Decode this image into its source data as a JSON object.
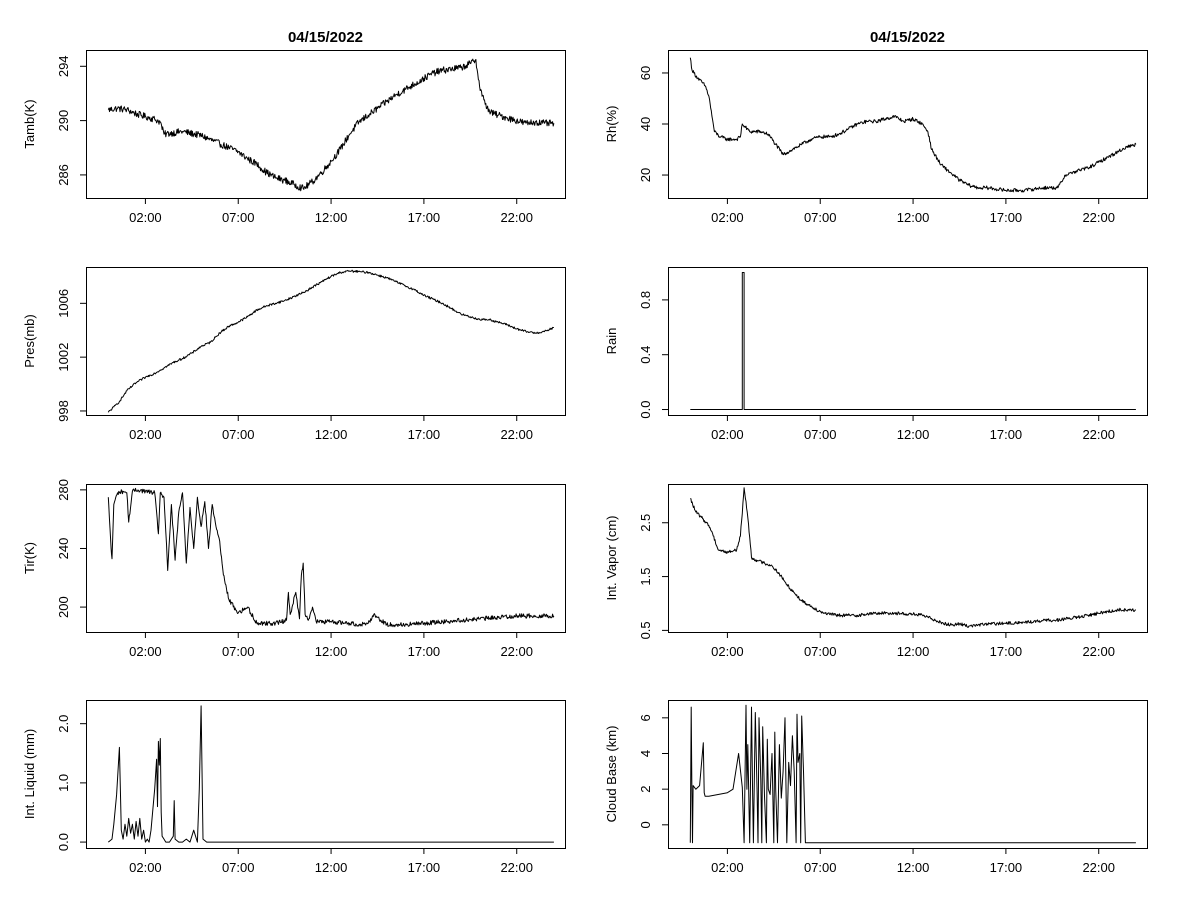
{
  "figure": {
    "column_titles": [
      "04/15/2022",
      "04/15/2022"
    ],
    "x_tick_labels": [
      "02:00",
      "07:00",
      "12:00",
      "17:00",
      "22:00"
    ]
  },
  "chart_data": [
    {
      "id": "tamb",
      "type": "line",
      "ylabel": "Tamb(K)",
      "title": "04/15/2022",
      "xlim": [
        -1.2,
        24.6
      ],
      "ylim": [
        284.3,
        295.2
      ],
      "yticks": [
        286,
        290,
        294
      ],
      "ytick_labels": [
        "286",
        "290",
        "294"
      ],
      "xticks": [
        2,
        7,
        12,
        17,
        22
      ],
      "xtick_labels": [
        "02:00",
        "07:00",
        "12:00",
        "17:00",
        "22:00"
      ],
      "x": [
        0.0,
        0.5,
        1.0,
        1.5,
        2.0,
        2.5,
        2.8,
        3.0,
        4.0,
        5.0,
        6.0,
        6.5,
        7.0,
        7.5,
        8.0,
        8.5,
        9.0,
        9.5,
        10.0,
        10.5,
        11.0,
        11.5,
        12.0,
        12.5,
        13.0,
        13.5,
        14.0,
        14.5,
        15.0,
        15.5,
        16.0,
        16.5,
        17.0,
        17.5,
        18.0,
        18.5,
        19.0,
        19.5,
        19.8,
        20.0,
        20.3,
        20.6,
        21.0,
        21.5,
        22.0,
        22.5,
        23.0,
        23.5,
        24.0
      ],
      "y": [
        290.8,
        290.9,
        290.8,
        290.5,
        290.3,
        290.1,
        289.9,
        289.0,
        289.2,
        288.9,
        288.3,
        288.0,
        287.7,
        287.2,
        286.8,
        286.2,
        285.8,
        285.6,
        285.3,
        285.0,
        285.5,
        286.2,
        287.0,
        287.9,
        289.0,
        289.9,
        290.4,
        290.9,
        291.4,
        291.9,
        292.3,
        292.7,
        293.1,
        293.5,
        293.7,
        293.8,
        293.9,
        294.2,
        294.5,
        292.5,
        291.2,
        290.6,
        290.4,
        290.2,
        290.0,
        289.8,
        289.9,
        289.8,
        289.8
      ],
      "noise": 0.25
    },
    {
      "id": "rh",
      "type": "line",
      "ylabel": "Rh(%)",
      "title": "04/15/2022",
      "xlim": [
        -1.2,
        24.6
      ],
      "ylim": [
        11,
        69
      ],
      "yticks": [
        20,
        40,
        60
      ],
      "ytick_labels": [
        "20",
        "40",
        "60"
      ],
      "xticks": [
        2,
        7,
        12,
        17,
        22
      ],
      "xtick_labels": [
        "02:00",
        "07:00",
        "12:00",
        "17:00",
        "22:00"
      ],
      "x": [
        0.0,
        0.1,
        0.4,
        0.8,
        1.0,
        1.3,
        1.6,
        2.0,
        2.5,
        2.7,
        2.8,
        3.2,
        3.8,
        4.2,
        4.6,
        5.0,
        5.5,
        6.0,
        6.5,
        7.0,
        7.5,
        8.0,
        8.5,
        9.0,
        9.5,
        10.0,
        10.5,
        11.0,
        11.5,
        12.0,
        12.5,
        12.8,
        13.0,
        13.5,
        14.0,
        14.5,
        15.0,
        15.5,
        16.0,
        17.0,
        18.0,
        19.0,
        19.8,
        20.2,
        20.6,
        21.0,
        21.5,
        22.0,
        22.5,
        23.0,
        23.5,
        24.0
      ],
      "y": [
        66,
        61,
        58,
        55,
        51,
        37,
        35,
        34,
        34,
        35,
        40,
        37,
        37,
        36,
        32,
        28,
        30,
        32,
        34,
        35,
        35,
        36,
        38,
        40,
        41,
        41,
        42,
        43,
        41,
        42,
        40,
        37,
        30,
        24,
        21,
        18,
        16,
        15,
        15,
        14,
        14,
        15,
        15,
        20,
        21,
        22,
        23,
        25,
        27,
        29,
        31,
        32
      ],
      "noise": 0.7
    },
    {
      "id": "pres",
      "type": "line",
      "ylabel": "Pres(mb)",
      "title": "",
      "xlim": [
        -1.2,
        24.6
      ],
      "ylim": [
        997.7,
        1008.7
      ],
      "yticks": [
        998,
        1002,
        1006
      ],
      "ytick_labels": [
        "998",
        "1002",
        "1006"
      ],
      "xticks": [
        2,
        7,
        12,
        17,
        22
      ],
      "xtick_labels": [
        "02:00",
        "07:00",
        "12:00",
        "17:00",
        "22:00"
      ],
      "x": [
        0.0,
        0.3,
        0.6,
        1.0,
        1.5,
        2.0,
        2.5,
        3.0,
        3.5,
        4.0,
        4.5,
        5.0,
        5.5,
        6.0,
        6.5,
        7.0,
        7.5,
        8.0,
        8.5,
        9.0,
        9.5,
        10.0,
        10.5,
        11.0,
        11.5,
        12.0,
        12.5,
        13.0,
        13.5,
        14.0,
        14.5,
        15.0,
        15.5,
        16.0,
        16.5,
        17.0,
        17.5,
        18.0,
        18.5,
        19.0,
        19.5,
        20.0,
        20.5,
        21.0,
        21.5,
        22.0,
        22.5,
        23.0,
        23.5,
        24.0
      ],
      "y": [
        997.9,
        998.3,
        998.7,
        999.5,
        1000.1,
        1000.5,
        1000.8,
        1001.2,
        1001.6,
        1001.9,
        1002.3,
        1002.8,
        1003.1,
        1003.8,
        1004.3,
        1004.6,
        1005.0,
        1005.5,
        1005.8,
        1006.0,
        1006.2,
        1006.5,
        1006.8,
        1007.2,
        1007.6,
        1008.0,
        1008.3,
        1008.4,
        1008.35,
        1008.3,
        1008.1,
        1007.9,
        1007.6,
        1007.3,
        1007.0,
        1006.6,
        1006.3,
        1006.0,
        1005.6,
        1005.2,
        1005.0,
        1004.8,
        1004.8,
        1004.6,
        1004.4,
        1004.1,
        1003.9,
        1003.8,
        1003.9,
        1004.2
      ],
      "noise": 0.08
    },
    {
      "id": "rain",
      "type": "line",
      "ylabel": "Rain",
      "title": "",
      "xlim": [
        -1.2,
        24.6
      ],
      "ylim": [
        -0.04,
        1.04
      ],
      "yticks": [
        0.0,
        0.4,
        0.8
      ],
      "ytick_labels": [
        "0.0",
        "0.4",
        "0.8"
      ],
      "xticks": [
        2,
        7,
        12,
        17,
        22
      ],
      "xtick_labels": [
        "02:00",
        "07:00",
        "12:00",
        "17:00",
        "22:00"
      ],
      "x": [
        0.0,
        2.8,
        2.8,
        2.9,
        2.9,
        24.0
      ],
      "y": [
        0,
        0,
        1.0,
        1.0,
        0,
        0
      ],
      "noise": 0
    },
    {
      "id": "tir",
      "type": "line",
      "ylabel": "Tir(K)",
      "title": "",
      "xlim": [
        -1.2,
        24.6
      ],
      "ylim": [
        183,
        284
      ],
      "yticks": [
        200,
        240,
        280
      ],
      "ytick_labels": [
        "200",
        "240",
        "280"
      ],
      "xticks": [
        2,
        7,
        12,
        17,
        22
      ],
      "xtick_labels": [
        "02:00",
        "07:00",
        "12:00",
        "17:00",
        "22:00"
      ],
      "x": [
        0.0,
        0.15,
        0.2,
        0.3,
        0.5,
        0.8,
        1.0,
        1.1,
        1.3,
        1.6,
        2.0,
        2.5,
        2.7,
        2.8,
        3.0,
        3.2,
        3.4,
        3.6,
        3.8,
        4.0,
        4.2,
        4.4,
        4.6,
        4.8,
        5.0,
        5.2,
        5.4,
        5.6,
        5.8,
        6.0,
        6.2,
        6.5,
        7.0,
        7.5,
        8.0,
        9.0,
        9.6,
        9.7,
        9.8,
        10.1,
        10.3,
        10.4,
        10.5,
        10.6,
        10.8,
        11.0,
        11.2,
        12.0,
        13.0,
        13.5,
        14.0,
        14.3,
        15.0,
        16.0,
        17.0,
        18.0,
        19.0,
        20.0,
        21.0,
        22.0,
        23.0,
        24.0
      ],
      "y": [
        275,
        240,
        233,
        270,
        278,
        279,
        278,
        258,
        279,
        280,
        279,
        278,
        250,
        278,
        275,
        225,
        270,
        232,
        265,
        278,
        230,
        268,
        240,
        275,
        255,
        272,
        240,
        270,
        255,
        245,
        222,
        205,
        196,
        200,
        189,
        189,
        191,
        210,
        195,
        210,
        192,
        222,
        230,
        195,
        192,
        200,
        190,
        190,
        189,
        188,
        189,
        195,
        188,
        188,
        189,
        190,
        191,
        192,
        193,
        194,
        194,
        194
      ],
      "noise": 1.5
    },
    {
      "id": "vapor",
      "type": "line",
      "ylabel": "Int. Vapor (cm)",
      "title": "",
      "xlim": [
        -1.2,
        24.6
      ],
      "ylim": [
        0.47,
        3.22
      ],
      "yticks": [
        0.5,
        1.5,
        2.5
      ],
      "ytick_labels": [
        "0.5",
        "1.5",
        "2.5"
      ],
      "xticks": [
        2,
        7,
        12,
        17,
        22
      ],
      "xtick_labels": [
        "02:00",
        "07:00",
        "12:00",
        "17:00",
        "22:00"
      ],
      "x": [
        0.0,
        0.3,
        0.6,
        1.0,
        1.2,
        1.5,
        2.0,
        2.5,
        2.7,
        2.9,
        3.1,
        3.3,
        3.6,
        4.0,
        4.4,
        4.8,
        5.2,
        5.6,
        6.0,
        6.5,
        7.0,
        7.5,
        8.0,
        9.0,
        10.0,
        11.0,
        12.0,
        12.5,
        13.0,
        13.5,
        14.0,
        14.5,
        15.0,
        15.5,
        16.0,
        17.0,
        18.0,
        19.0,
        20.0,
        21.0,
        22.0,
        23.0,
        24.0
      ],
      "y": [
        2.95,
        2.7,
        2.6,
        2.45,
        2.3,
        2.0,
        1.95,
        2.0,
        2.25,
        3.15,
        2.6,
        1.85,
        1.8,
        1.75,
        1.7,
        1.55,
        1.35,
        1.2,
        1.05,
        0.95,
        0.85,
        0.8,
        0.78,
        0.78,
        0.82,
        0.82,
        0.8,
        0.78,
        0.72,
        0.65,
        0.6,
        0.62,
        0.58,
        0.6,
        0.62,
        0.63,
        0.65,
        0.68,
        0.7,
        0.75,
        0.82,
        0.88,
        0.88
      ],
      "noise": 0.03
    },
    {
      "id": "liquid",
      "type": "line",
      "ylabel": "Int. Liquid (mm)",
      "title": "",
      "xlim": [
        -1.2,
        24.6
      ],
      "ylim": [
        -0.1,
        2.4
      ],
      "yticks": [
        0.0,
        1.0,
        2.0
      ],
      "ytick_labels": [
        "0.0",
        "1.0",
        "2.0"
      ],
      "xticks": [
        2,
        7,
        12,
        17,
        22
      ],
      "xtick_labels": [
        "02:00",
        "07:00",
        "12:00",
        "17:00",
        "22:00"
      ],
      "x": [
        0.0,
        0.2,
        0.3,
        0.45,
        0.6,
        0.7,
        0.8,
        0.9,
        1.0,
        1.1,
        1.2,
        1.3,
        1.4,
        1.5,
        1.6,
        1.7,
        1.8,
        1.9,
        2.0,
        2.1,
        2.2,
        2.3,
        2.5,
        2.6,
        2.65,
        2.7,
        2.75,
        2.8,
        2.85,
        2.9,
        3.0,
        3.1,
        3.3,
        3.5,
        3.55,
        3.6,
        3.8,
        4.0,
        4.2,
        4.4,
        4.6,
        4.8,
        4.9,
        5.0,
        5.1,
        5.3,
        6.0,
        12.0,
        24.0
      ],
      "y": [
        0.0,
        0.05,
        0.3,
        0.8,
        1.6,
        0.2,
        0.05,
        0.3,
        0.1,
        0.4,
        0.15,
        0.3,
        0.05,
        0.35,
        0.1,
        0.4,
        0.05,
        0.2,
        0.0,
        0.05,
        0.0,
        0.2,
        0.9,
        1.4,
        0.6,
        1.7,
        1.3,
        1.75,
        0.5,
        0.1,
        0.05,
        0.0,
        0.0,
        0.1,
        0.7,
        0.05,
        0.0,
        0.0,
        0.05,
        0.0,
        0.2,
        0.0,
        0.9,
        2.3,
        0.05,
        0.0,
        0.0,
        0.0,
        0.0
      ],
      "noise": 0
    },
    {
      "id": "cloudbase",
      "type": "line",
      "ylabel": "Cloud Base (km)",
      "title": "",
      "xlim": [
        -1.2,
        24.6
      ],
      "ylim": [
        -1.3,
        7.0
      ],
      "yticks": [
        0,
        2,
        4,
        6
      ],
      "ytick_labels": [
        "0",
        "2",
        "4",
        "6"
      ],
      "xticks": [
        2,
        7,
        12,
        17,
        22
      ],
      "xtick_labels": [
        "02:00",
        "07:00",
        "12:00",
        "17:00",
        "22:00"
      ],
      "x": [
        0.0,
        0.05,
        0.08,
        0.12,
        0.15,
        0.3,
        0.5,
        0.7,
        0.75,
        0.8,
        1.0,
        1.5,
        2.0,
        2.3,
        2.6,
        2.8,
        2.9,
        3.0,
        3.05,
        3.1,
        3.2,
        3.3,
        3.35,
        3.4,
        3.5,
        3.6,
        3.65,
        3.7,
        3.8,
        3.85,
        3.9,
        4.0,
        4.1,
        4.15,
        4.2,
        4.3,
        4.4,
        4.5,
        4.55,
        4.6,
        4.7,
        4.8,
        4.9,
        5.0,
        5.1,
        5.2,
        5.3,
        5.4,
        5.5,
        5.6,
        5.7,
        5.75,
        5.8,
        5.9,
        5.95,
        6.0,
        6.1,
        6.2,
        6.3,
        24.0
      ],
      "y": [
        -1.0,
        6.6,
        2.5,
        -1.0,
        2.2,
        2.0,
        2.2,
        4.6,
        1.8,
        1.6,
        1.6,
        1.7,
        1.8,
        2.0,
        4.0,
        2.1,
        -1.0,
        6.7,
        2.0,
        4.5,
        -1.0,
        6.6,
        2.2,
        -1.0,
        6.3,
        1.8,
        -1.0,
        6.0,
        2.5,
        -1.0,
        5.5,
        1.6,
        -1.0,
        4.8,
        2.0,
        1.7,
        4.0,
        -1.0,
        5.2,
        2.0,
        -1.0,
        4.5,
        1.5,
        3.0,
        6.0,
        -1.0,
        3.5,
        2.2,
        5.0,
        3.0,
        -1.0,
        6.2,
        3.5,
        4.0,
        -1.0,
        6.1,
        3.0,
        -1.0,
        -1.0,
        -1.0
      ],
      "noise": 0
    }
  ]
}
